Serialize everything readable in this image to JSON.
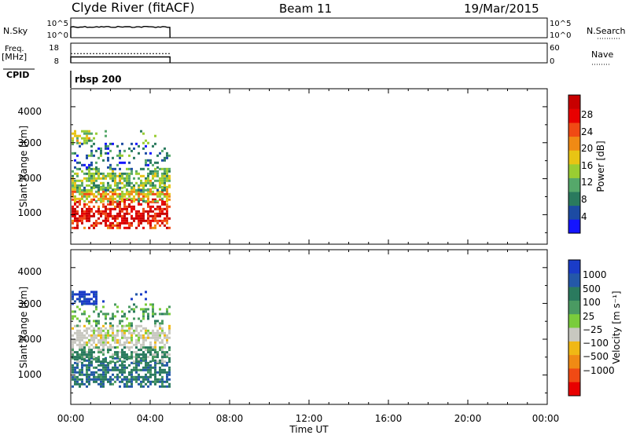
{
  "header": {
    "station": "Clyde River (fitACF)",
    "beam": "Beam 11",
    "date": "19/Mar/2015"
  },
  "top_panels": {
    "nsky_label": "N.Sky",
    "nsky_ticks": [
      "10^5",
      "10^0"
    ],
    "nsearch_label": "N.Search",
    "nsearch_ticks": [
      "10^5",
      "10^0"
    ],
    "freq_label_1": "Freq.",
    "freq_label_2": "[MHz]",
    "freq_ticks": [
      "18",
      "8"
    ],
    "nave_label": "Nave",
    "nave_ticks": [
      "60",
      "0"
    ],
    "cpid_label": "CPID",
    "cpid_value": "rbsp 200",
    "nsky_level": 0.55,
    "freq_level": 0.3,
    "nave_level": 0.47
  },
  "time_axis": {
    "label": "Time UT",
    "ticks": [
      "00:00",
      "04:00",
      "08:00",
      "12:00",
      "16:00",
      "20:00",
      "00:00"
    ],
    "data_end_fraction": 0.2083
  },
  "chart_data": [
    {
      "type": "heatmap",
      "name": "power",
      "ylabel": "Slant Range [km]",
      "yticks": [
        "1000",
        "2000",
        "3000",
        "4000"
      ],
      "ylim": [
        180,
        4500
      ],
      "xlim": [
        "00:00",
        "24:00"
      ],
      "colorbar": {
        "label": "Power [dB]",
        "ticks": [
          "4",
          "8",
          "12",
          "16",
          "20",
          "24",
          "28"
        ],
        "colors": [
          "#1414ff",
          "#1c4ba3",
          "#2a7a5e",
          "#55a86a",
          "#9acd32",
          "#e8c414",
          "#f08a14",
          "#f04a14",
          "#e80000",
          "#c80000"
        ]
      },
      "echo_bands": [
        {
          "y_min": 650,
          "y_max": 1450,
          "dB_typical": 28
        },
        {
          "y_min": 1400,
          "y_max": 1800,
          "dB_typical": 18
        },
        {
          "y_min": 1700,
          "y_max": 2300,
          "dB_typical": 14
        },
        {
          "y_min": 2300,
          "y_max": 3000,
          "dB_typical": 8
        },
        {
          "y_min": 3000,
          "y_max": 3350,
          "dB_typical": 16
        }
      ]
    },
    {
      "type": "heatmap",
      "name": "velocity",
      "ylabel": "Slant Range [km]",
      "yticks": [
        "1000",
        "2000",
        "3000",
        "4000"
      ],
      "ylim": [
        180,
        4500
      ],
      "xlim": [
        "00:00",
        "24:00"
      ],
      "colorbar": {
        "label": "Velocity [m s⁻¹]",
        "ticks": [
          "1000",
          "500",
          "100",
          "25",
          "−25",
          "−100",
          "−500",
          "−1000"
        ],
        "colors": [
          "#1a3cc8",
          "#2458a8",
          "#2a7a5e",
          "#4a9a62",
          "#7acc3c",
          "#c8c8c0",
          "#f0b814",
          "#f08a14",
          "#f04a14",
          "#e80000"
        ]
      },
      "echo_bands": [
        {
          "y_min": 650,
          "y_max": 1500,
          "velocity_typical": 150
        },
        {
          "y_min": 1400,
          "y_max": 1800,
          "velocity_typical": 100
        },
        {
          "y_min": 1800,
          "y_max": 2400,
          "velocity_typical": 0
        },
        {
          "y_min": 2400,
          "y_max": 3000,
          "velocity_typical": 50
        },
        {
          "y_min": 3000,
          "y_max": 3350,
          "velocity_typical": 1000
        }
      ]
    }
  ]
}
